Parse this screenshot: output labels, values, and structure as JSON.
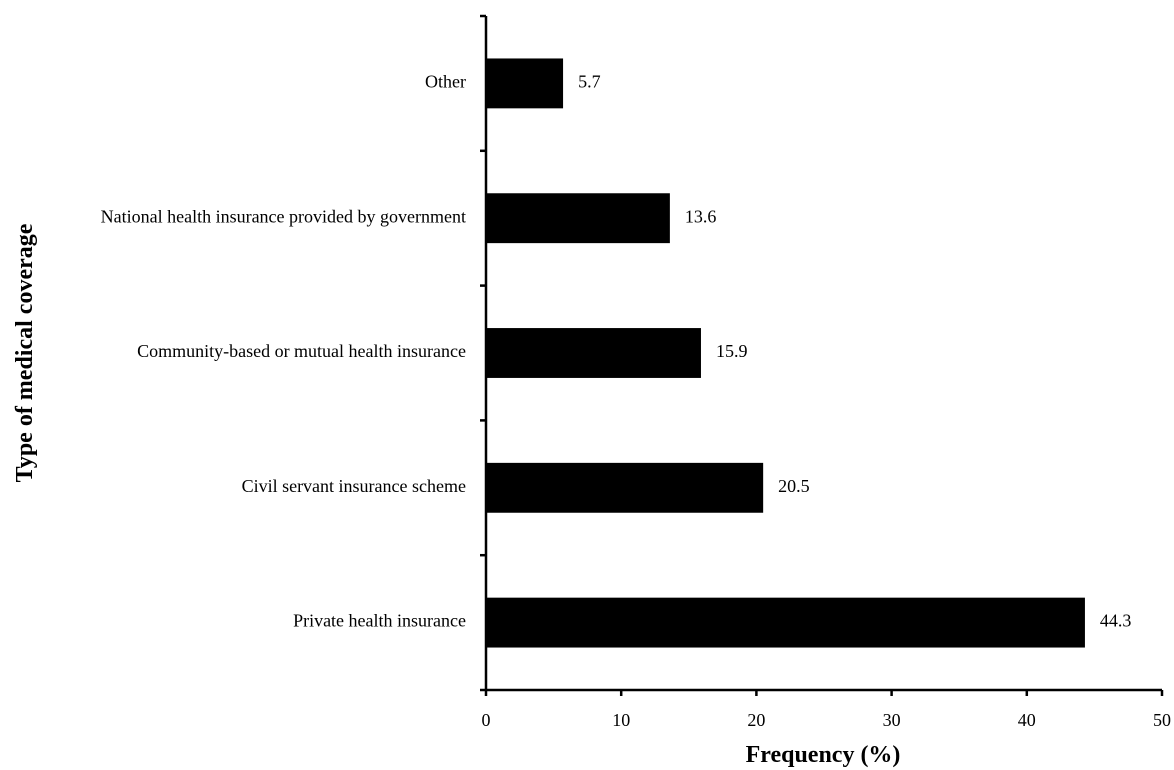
{
  "chart_data": {
    "type": "bar",
    "orientation": "horizontal",
    "categories": [
      "Other",
      "National health insurance provided by government",
      "Community-based or mutual health insurance",
      "Civil servant insurance scheme",
      "Private health insurance"
    ],
    "values": [
      5.7,
      13.6,
      15.9,
      20.5,
      44.3
    ],
    "value_labels": [
      "5.7",
      "13.6",
      "15.9",
      "20.5",
      "44.3"
    ],
    "xlabel": "Frequency (%)",
    "ylabel": "Type of medical coverage",
    "xlim": [
      0,
      50
    ],
    "xticks": [
      0,
      10,
      20,
      30,
      40,
      50
    ],
    "grid": false,
    "legend": "none",
    "bar_color": "#000000"
  }
}
